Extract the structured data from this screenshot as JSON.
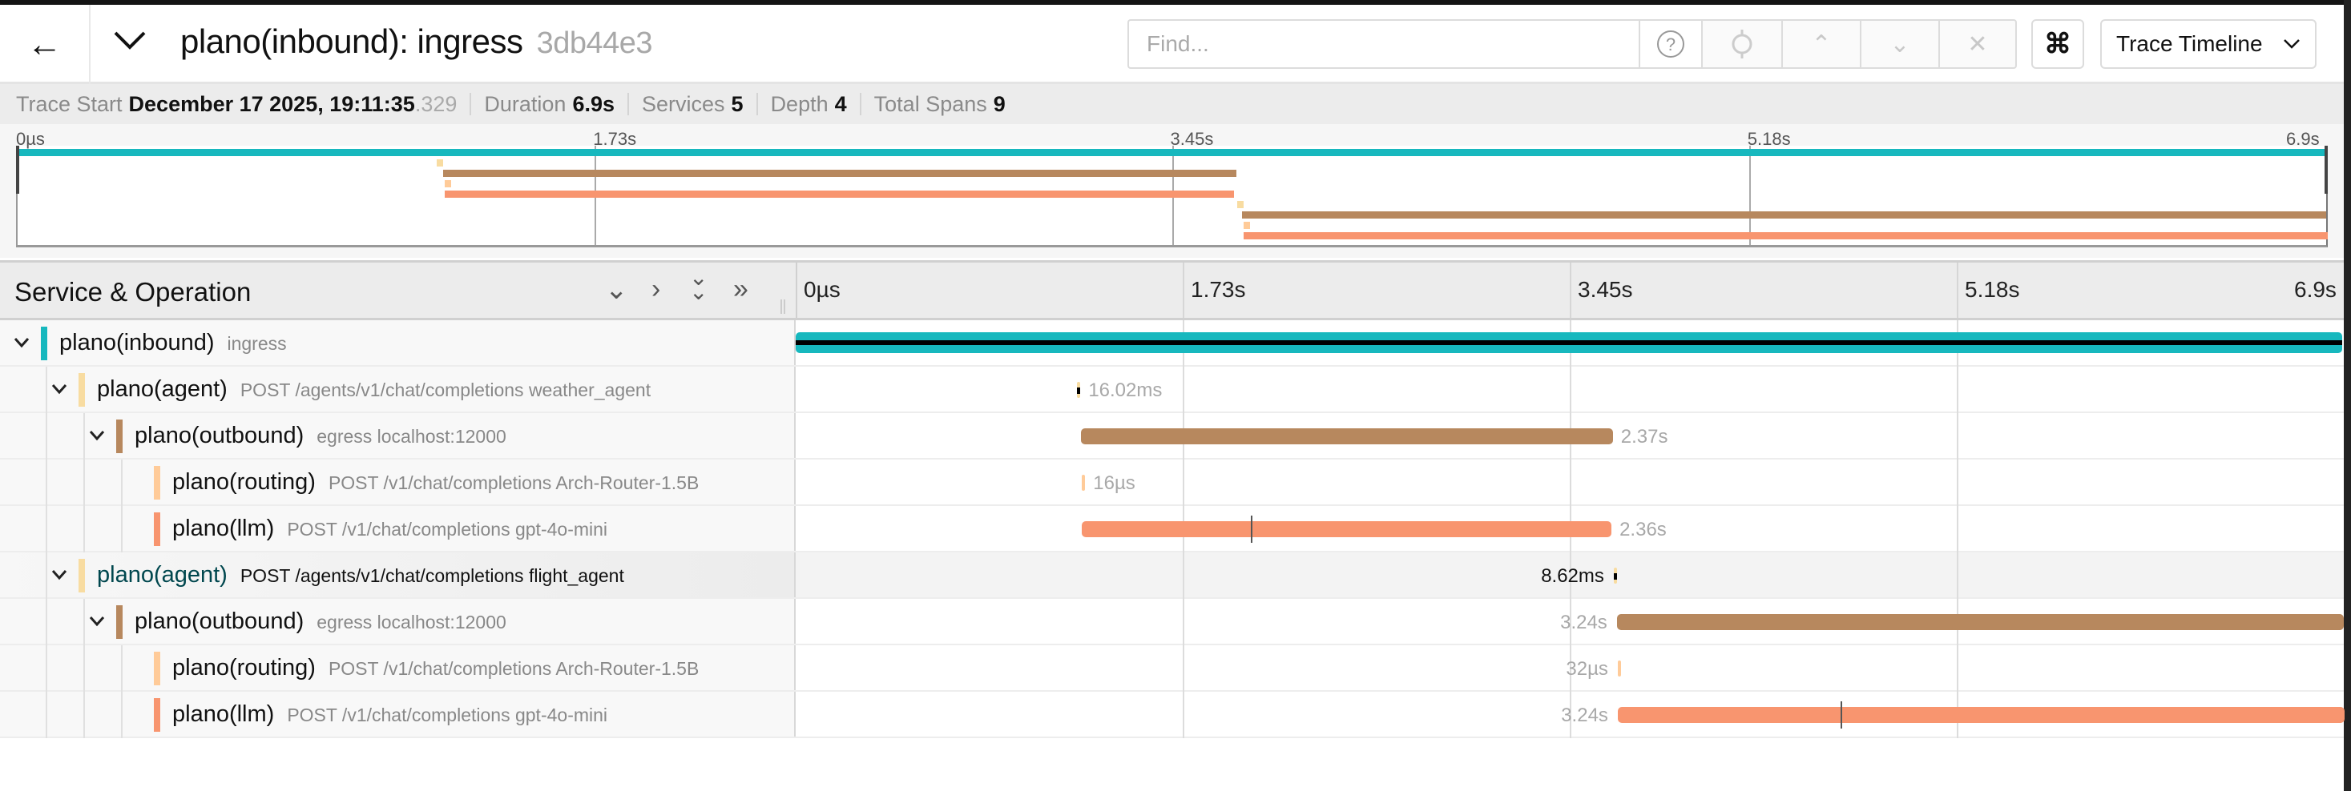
{
  "header": {
    "title": "plano(inbound): ingress",
    "trace_id": "3db44e3",
    "find_placeholder": "Find...",
    "view_select": "Trace Timeline",
    "icons": [
      "arrow-left-icon",
      "chevron-down-icon",
      "help-icon",
      "locate-icon",
      "chevron-up-icon",
      "chevron-down-icon",
      "close-icon",
      "command-icon"
    ]
  },
  "summary": {
    "trace_start_label": "Trace Start",
    "trace_start_value": "December 17 2025, 19:11:35",
    "trace_start_ms": ".329",
    "duration_label": "Duration",
    "duration_value": "6.9s",
    "services_label": "Services",
    "services_value": "5",
    "depth_label": "Depth",
    "depth_value": "4",
    "total_spans_label": "Total Spans",
    "total_spans_value": "9"
  },
  "ticks": [
    "0µs",
    "1.73s",
    "3.45s",
    "5.18s",
    "6.9s"
  ],
  "column_header": "Service & Operation",
  "colors": {
    "inbound": "#17b8be",
    "agent": "#f8dca1",
    "outbound": "#b7885e",
    "routing": "#ffcb99",
    "llm": "#f8956f"
  },
  "trace_duration_s": 6.9,
  "spans": [
    {
      "service": "plano(inbound)",
      "operation": "ingress",
      "depth": 0,
      "expandable": true,
      "color_key": "inbound",
      "start_s": 0,
      "duration_s": 6.9,
      "duration": "",
      "root": true
    },
    {
      "service": "plano(agent)",
      "operation": "POST /agents/v1/chat/completions weather_agent",
      "depth": 1,
      "expandable": true,
      "color_key": "agent",
      "start_s": 1.253,
      "duration_s": 0.01602,
      "duration": "16.02ms",
      "label_side": "right"
    },
    {
      "service": "plano(outbound)",
      "operation": "egress localhost:12000",
      "depth": 2,
      "expandable": true,
      "color_key": "outbound",
      "start_s": 1.272,
      "duration_s": 2.37,
      "duration": "2.37s",
      "label_side": "right"
    },
    {
      "service": "plano(routing)",
      "operation": "POST /v1/chat/completions Arch-Router-1.5B",
      "depth": 3,
      "expandable": false,
      "color_key": "routing",
      "start_s": 1.276,
      "duration_s": 1.6e-05,
      "duration": "16µs",
      "label_side": "right"
    },
    {
      "service": "plano(llm)",
      "operation": "POST /v1/chat/completions gpt-4o-mini",
      "depth": 3,
      "expandable": false,
      "color_key": "llm",
      "start_s": 1.276,
      "duration_s": 2.36,
      "duration": "2.36s",
      "label_side": "right",
      "log_s": 2.03
    },
    {
      "service": "plano(agent)",
      "operation": "POST /agents/v1/chat/completions flight_agent",
      "depth": 1,
      "expandable": true,
      "color_key": "agent",
      "start_s": 3.646,
      "duration_s": 0.00862,
      "duration": "8.62ms",
      "label_side": "left",
      "hovered": true
    },
    {
      "service": "plano(outbound)",
      "operation": "egress localhost:12000",
      "depth": 2,
      "expandable": true,
      "color_key": "outbound",
      "start_s": 3.66,
      "duration_s": 3.24,
      "duration": "3.24s",
      "label_side": "left"
    },
    {
      "service": "plano(routing)",
      "operation": "POST /v1/chat/completions Arch-Router-1.5B",
      "depth": 3,
      "expandable": false,
      "color_key": "routing",
      "start_s": 3.664,
      "duration_s": 3.2e-05,
      "duration": "32µs",
      "label_side": "left"
    },
    {
      "service": "plano(llm)",
      "operation": "POST /v1/chat/completions gpt-4o-mini",
      "depth": 3,
      "expandable": false,
      "color_key": "llm",
      "start_s": 3.664,
      "duration_s": 3.24,
      "duration": "3.24s",
      "label_side": "left",
      "log_s": 4.656
    }
  ]
}
